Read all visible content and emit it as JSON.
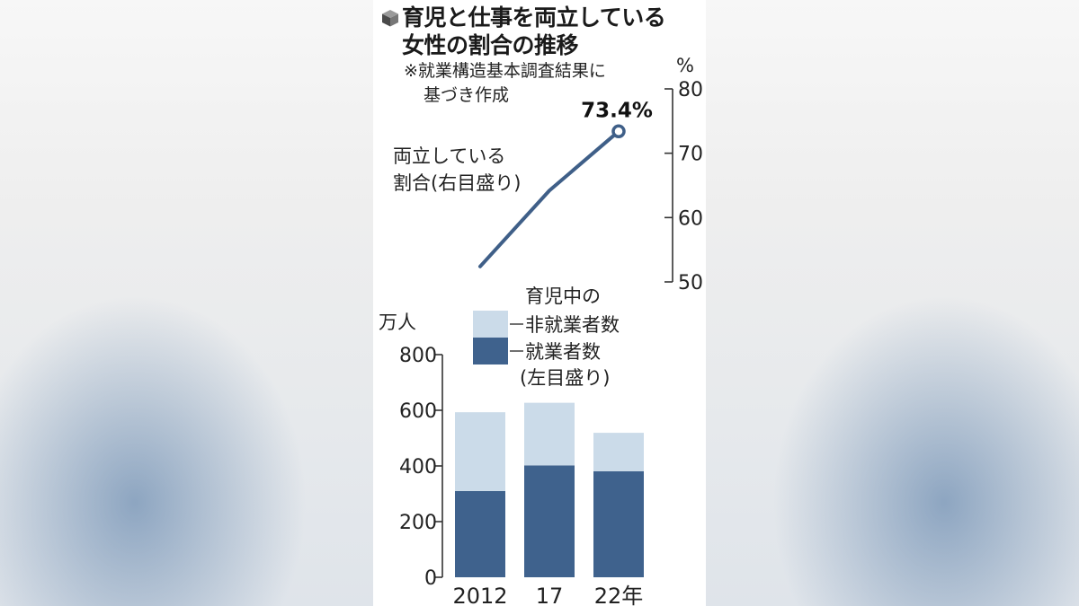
{
  "header": {
    "icon": "cube-icon",
    "title_line1": "育児と仕事を両立している",
    "title_line2": "女性の割合の推移",
    "note_line1": "※就業構造基本調査結果に",
    "note_line2": "基づき作成"
  },
  "colors": {
    "employed": "#3f628d",
    "non_employed": "#cbdbe9",
    "line": "#3f5f88",
    "text": "#222222"
  },
  "chart_data": [
    {
      "type": "line",
      "series_label_line1": "両立している",
      "series_label_line2": "割合(右目盛り)",
      "x": [
        "2012",
        "17",
        "22年"
      ],
      "values": [
        52.4,
        64.2,
        73.4
      ],
      "end_label": "73.4%",
      "y_unit": "%",
      "y_axis_side": "right",
      "ylim": [
        50,
        80
      ],
      "y_ticks": [
        "50",
        "60",
        "70",
        "80"
      ]
    },
    {
      "type": "bar",
      "stacked": true,
      "categories": [
        "2012",
        "17",
        "22年"
      ],
      "series": [
        {
          "name": "就業者数",
          "values": [
            310,
            402,
            381
          ]
        },
        {
          "name": "非就業者数",
          "values": [
            283,
            225,
            138
          ]
        }
      ],
      "legend_top": "育児中の",
      "legend_non_employed": "非就業者数",
      "legend_employed": "就業者数",
      "legend_axis_note": "(左目盛り)",
      "y_unit": "万人",
      "y_axis_side": "left",
      "ylim": [
        0,
        800
      ],
      "y_ticks": [
        "0",
        "200",
        "400",
        "600",
        "800"
      ]
    }
  ]
}
